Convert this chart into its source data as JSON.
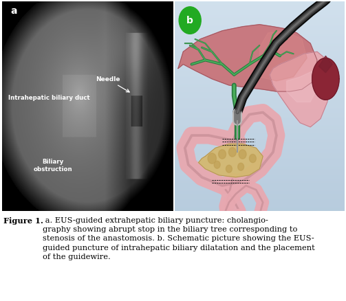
{
  "figure_width": 5.03,
  "figure_height": 4.38,
  "dpi": 100,
  "bg_color": "#ffffff",
  "panel_a_label": "a",
  "panel_b_label": "b",
  "panel_a_text_needle": "Needle",
  "panel_a_text_duct": "Intrahepatic biliary duct",
  "panel_a_text_biliary": "Biliary\nobstruction",
  "caption_bold": "Figure 1.",
  "caption_rest": " a. EUS-guided extrahepatic biliary puncture: cholangio-\ngraphy showing abrupt stop in the biliary tree corresponding to\nstenosis of the anastomosis. b. Schematic picture showing the EUS-\nguided puncture of intrahepatic biliary dilatation and the placement\nof the guidewire.",
  "caption_fontsize": 8.2,
  "liver_color": "#c8747a",
  "liver_edge": "#a05560",
  "bile_duct_dark": "#2a7a40",
  "bile_duct_light": "#4aad5a",
  "stomach_color": "#e8a8b0",
  "stomach_edge": "#c08090",
  "spleen_color": "#8b2535",
  "intestine_color": "#e8a8b0",
  "pancreas_color": "#d4b870",
  "bg_panel_b_top": "#b8ccd8",
  "bg_panel_b_bot": "#c8d8e4"
}
